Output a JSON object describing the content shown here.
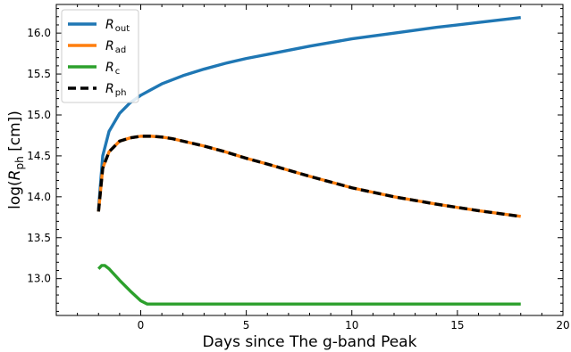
{
  "chart_data": {
    "type": "line",
    "xlabel": "Days since The g-band Peak",
    "ylabel": {
      "prefix": "log(",
      "italic": "R",
      "sub": "ph",
      "suffix": " [cm])"
    },
    "xlim": [
      -4,
      20
    ],
    "ylim": [
      12.55,
      16.35
    ],
    "xticks": [
      0,
      5,
      10,
      15,
      20
    ],
    "yticks": [
      13.0,
      13.5,
      14.0,
      14.5,
      15.0,
      15.5,
      16.0
    ],
    "xtick_labels": [
      "0",
      "5",
      "10",
      "15",
      "20"
    ],
    "ytick_labels": [
      "13.0",
      "13.5",
      "14.0",
      "14.5",
      "15.0",
      "15.5",
      "16.0"
    ],
    "legend_position": "top-left",
    "series": [
      {
        "name": "R_out",
        "label_main": "R",
        "label_sub": "out",
        "color": "#1f77b4",
        "style": "solid",
        "x": [
          -2.0,
          -1.8,
          -1.5,
          -1.0,
          -0.5,
          0,
          0.5,
          1,
          2,
          3,
          4,
          5,
          6,
          8,
          10,
          12,
          14,
          16,
          18
        ],
        "y": [
          13.85,
          14.5,
          14.8,
          15.02,
          15.15,
          15.24,
          15.31,
          15.38,
          15.48,
          15.56,
          15.63,
          15.69,
          15.74,
          15.84,
          15.93,
          16.0,
          16.07,
          16.13,
          16.19
        ]
      },
      {
        "name": "R_ad",
        "label_main": "R",
        "label_sub": "ad",
        "color": "#ff7f0e",
        "style": "solid",
        "x": [
          -2.0,
          -1.8,
          -1.5,
          -1.0,
          -0.5,
          0,
          0.5,
          1,
          1.5,
          2,
          3,
          4,
          5,
          6,
          8,
          10,
          12,
          14,
          16,
          18
        ],
        "y": [
          13.82,
          14.35,
          14.55,
          14.68,
          14.72,
          14.74,
          14.74,
          14.73,
          14.71,
          14.68,
          14.62,
          14.55,
          14.47,
          14.4,
          14.25,
          14.11,
          14.0,
          13.91,
          13.83,
          13.76
        ]
      },
      {
        "name": "R_c",
        "label_main": "R",
        "label_sub": "c",
        "color": "#2ca02c",
        "style": "solid",
        "x": [
          -2.0,
          -1.85,
          -1.7,
          -1.5,
          -1.0,
          -0.5,
          0,
          0.3,
          1,
          5,
          10,
          15,
          18
        ],
        "y": [
          13.12,
          13.16,
          13.16,
          13.12,
          12.98,
          12.85,
          12.73,
          12.69,
          12.69,
          12.69,
          12.69,
          12.69,
          12.69
        ]
      },
      {
        "name": "R_ph",
        "label_main": "R",
        "label_sub": "ph",
        "color": "#000000",
        "style": "dashed",
        "x": [
          -2.0,
          -1.8,
          -1.5,
          -1.0,
          -0.5,
          0,
          0.5,
          1,
          1.5,
          2,
          3,
          4,
          5,
          6,
          8,
          10,
          12,
          14,
          16,
          18
        ],
        "y": [
          13.82,
          14.35,
          14.55,
          14.68,
          14.72,
          14.74,
          14.74,
          14.73,
          14.71,
          14.68,
          14.62,
          14.55,
          14.47,
          14.4,
          14.25,
          14.11,
          14.0,
          13.91,
          13.83,
          13.76
        ]
      }
    ]
  }
}
